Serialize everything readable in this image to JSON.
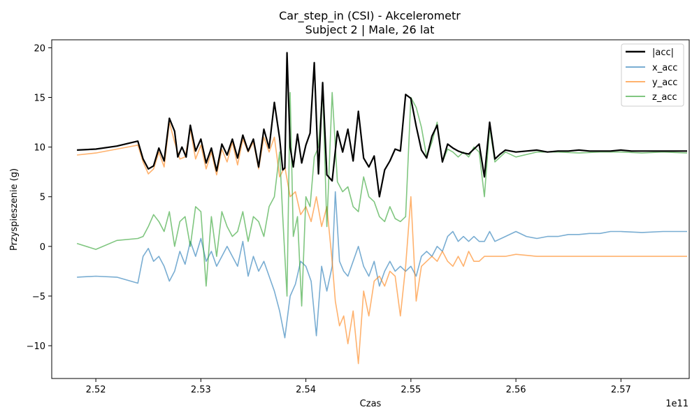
{
  "chart_data": {
    "type": "line",
    "title": "Car_step_in (CSI) - Akcelerometr",
    "subtitle": "Subject 2 | Male, 26 lat",
    "xlabel": "Czas",
    "ylabel": "Przyspieszenie (g)",
    "x_offset_label": "1e11",
    "xlim": [
      2.5158,
      2.5765
    ],
    "ylim": [
      -13.3,
      20.8
    ],
    "xticks": [
      2.52,
      2.53,
      2.54,
      2.55,
      2.56,
      2.57
    ],
    "xtick_labels": [
      "2.52",
      "2.53",
      "2.54",
      "2.55",
      "2.56",
      "2.57"
    ],
    "yticks": [
      -10,
      -5,
      0,
      5,
      10,
      15,
      20
    ],
    "ytick_labels": [
      "−10",
      "−5",
      "0",
      "5",
      "10",
      "15",
      "20"
    ],
    "grid": false,
    "legend_position": "top-right",
    "series": [
      {
        "name": "|acc|",
        "color": "#000000",
        "x": [
          2.5182,
          2.52,
          2.522,
          2.524,
          2.5245,
          2.525,
          2.5255,
          2.526,
          2.5265,
          2.527,
          2.5275,
          2.5278,
          2.5282,
          2.5286,
          2.529,
          2.5295,
          2.53,
          2.5305,
          2.531,
          2.5315,
          2.532,
          2.5325,
          2.533,
          2.5335,
          2.534,
          2.5345,
          2.535,
          2.5355,
          2.536,
          2.5365,
          2.537,
          2.5375,
          2.5378,
          2.538,
          2.5382,
          2.5385,
          2.5388,
          2.5392,
          2.5396,
          2.54,
          2.5404,
          2.5408,
          2.5412,
          2.5416,
          2.542,
          2.5425,
          2.543,
          2.5435,
          2.544,
          2.5445,
          2.545,
          2.5455,
          2.546,
          2.5465,
          2.547,
          2.5475,
          2.548,
          2.5485,
          2.549,
          2.5495,
          2.55,
          2.5505,
          2.551,
          2.5515,
          2.552,
          2.5525,
          2.553,
          2.5535,
          2.554,
          2.5545,
          2.555,
          2.5555,
          2.556,
          2.5565,
          2.557,
          2.5575,
          2.558,
          2.5585,
          2.559,
          2.56,
          2.561,
          2.562,
          2.563,
          2.564,
          2.565,
          2.566,
          2.567,
          2.568,
          2.569,
          2.57,
          2.571,
          2.572,
          2.573,
          2.574,
          2.575,
          2.5763
        ],
        "y": [
          9.7,
          9.8,
          10.1,
          10.6,
          8.8,
          7.8,
          8.1,
          9.9,
          8.6,
          12.9,
          11.6,
          9.0,
          10.0,
          9.0,
          12.2,
          9.6,
          10.8,
          8.4,
          9.9,
          7.6,
          10.3,
          9.2,
          10.8,
          8.9,
          11.2,
          9.6,
          10.8,
          8.0,
          11.8,
          9.9,
          14.5,
          10.9,
          7.7,
          7.9,
          19.5,
          10.0,
          8.0,
          11.3,
          8.4,
          10.2,
          11.4,
          18.5,
          7.3,
          16.5,
          7.2,
          6.6,
          11.6,
          9.5,
          11.8,
          8.6,
          13.6,
          8.9,
          8.0,
          9.1,
          5.0,
          7.7,
          8.6,
          9.8,
          9.6,
          15.3,
          14.9,
          12.1,
          9.7,
          8.9,
          11.1,
          12.2,
          8.5,
          10.3,
          9.9,
          9.6,
          9.4,
          9.3,
          9.8,
          10.3,
          7.0,
          12.5,
          8.8,
          9.3,
          9.7,
          9.5,
          9.6,
          9.7,
          9.5,
          9.6,
          9.6,
          9.7,
          9.6,
          9.6,
          9.6,
          9.7,
          9.6,
          9.6,
          9.6,
          9.6,
          9.6,
          9.6
        ]
      },
      {
        "name": "x_acc",
        "color": "#1f77b4",
        "x": [
          2.5182,
          2.52,
          2.522,
          2.524,
          2.5245,
          2.525,
          2.5255,
          2.526,
          2.5265,
          2.527,
          2.5275,
          2.528,
          2.5285,
          2.529,
          2.5295,
          2.53,
          2.5305,
          2.531,
          2.5315,
          2.532,
          2.5325,
          2.533,
          2.5335,
          2.534,
          2.5345,
          2.535,
          2.5355,
          2.536,
          2.5365,
          2.537,
          2.5375,
          2.538,
          2.5385,
          2.539,
          2.5395,
          2.54,
          2.5405,
          2.541,
          2.5415,
          2.542,
          2.5425,
          2.5428,
          2.5432,
          2.5436,
          2.544,
          2.5445,
          2.545,
          2.5455,
          2.546,
          2.5465,
          2.547,
          2.5475,
          2.548,
          2.5485,
          2.549,
          2.5495,
          2.55,
          2.5505,
          2.551,
          2.5515,
          2.552,
          2.5525,
          2.553,
          2.5535,
          2.554,
          2.5545,
          2.555,
          2.5555,
          2.556,
          2.5565,
          2.557,
          2.5575,
          2.558,
          2.559,
          2.56,
          2.561,
          2.562,
          2.563,
          2.564,
          2.565,
          2.566,
          2.567,
          2.568,
          2.569,
          2.57,
          2.572,
          2.574,
          2.5763
        ],
        "y": [
          -3.1,
          -3.0,
          -3.1,
          -3.7,
          -1.0,
          -0.2,
          -1.5,
          -1.0,
          -2.0,
          -3.5,
          -2.5,
          -0.5,
          -1.8,
          0.5,
          -1.0,
          0.8,
          -1.5,
          -0.5,
          -2.0,
          -1.0,
          0.0,
          -1.0,
          -2.0,
          0.5,
          -3.0,
          -1.0,
          -2.5,
          -1.5,
          -3.0,
          -4.5,
          -6.5,
          -9.2,
          -5.0,
          -3.8,
          -1.5,
          -2.0,
          -3.5,
          -9.0,
          -2.0,
          -4.5,
          -2.0,
          5.5,
          -1.5,
          -2.5,
          -3.0,
          -1.5,
          0.0,
          -2.0,
          -3.0,
          -1.5,
          -4.0,
          -2.5,
          -1.5,
          -2.5,
          -2.0,
          -2.5,
          -2.0,
          -3.0,
          -1.0,
          -0.5,
          -1.0,
          0.0,
          -0.5,
          1.0,
          1.5,
          0.5,
          1.0,
          0.5,
          1.0,
          0.5,
          0.5,
          1.5,
          0.5,
          1.0,
          1.5,
          1.0,
          0.8,
          1.0,
          1.0,
          1.2,
          1.2,
          1.3,
          1.3,
          1.5,
          1.5,
          1.4,
          1.5,
          1.5
        ]
      },
      {
        "name": "y_acc",
        "color": "#ff7f0e",
        "x": [
          2.5182,
          2.52,
          2.522,
          2.524,
          2.5245,
          2.525,
          2.5255,
          2.526,
          2.5265,
          2.527,
          2.5275,
          2.528,
          2.5285,
          2.529,
          2.5295,
          2.53,
          2.5305,
          2.531,
          2.5315,
          2.532,
          2.5325,
          2.533,
          2.5335,
          2.534,
          2.5345,
          2.535,
          2.5355,
          2.536,
          2.5365,
          2.537,
          2.5375,
          2.538,
          2.5385,
          2.539,
          2.5395,
          2.54,
          2.5405,
          2.541,
          2.5415,
          2.542,
          2.5425,
          2.5428,
          2.5432,
          2.5436,
          2.544,
          2.5445,
          2.545,
          2.5455,
          2.546,
          2.5465,
          2.547,
          2.5475,
          2.548,
          2.5485,
          2.549,
          2.5495,
          2.55,
          2.5505,
          2.551,
          2.5515,
          2.552,
          2.5525,
          2.553,
          2.5535,
          2.554,
          2.5545,
          2.555,
          2.5555,
          2.556,
          2.5565,
          2.557,
          2.558,
          2.559,
          2.56,
          2.562,
          2.564,
          2.566,
          2.568,
          2.57,
          2.572,
          2.574,
          2.5763
        ],
        "y": [
          9.2,
          9.4,
          9.8,
          10.2,
          8.5,
          7.3,
          7.8,
          9.5,
          8.0,
          12.5,
          10.5,
          8.8,
          9.0,
          11.8,
          8.8,
          10.2,
          7.8,
          9.5,
          7.2,
          9.8,
          8.5,
          10.5,
          8.2,
          10.8,
          9.5,
          10.5,
          7.8,
          11.0,
          9.5,
          11.0,
          7.0,
          8.0,
          5.0,
          5.5,
          3.2,
          4.0,
          2.5,
          5.0,
          2.0,
          4.0,
          -1.5,
          -5.5,
          -8.0,
          -7.0,
          -9.8,
          -6.5,
          -11.8,
          -4.5,
          -7.0,
          -3.5,
          -3.0,
          -4.0,
          -2.5,
          -3.0,
          -7.0,
          -2.0,
          5.0,
          -5.5,
          -2.0,
          -1.5,
          -1.0,
          -1.5,
          -0.5,
          -1.5,
          -2.0,
          -1.0,
          -2.0,
          -0.5,
          -1.5,
          -1.5,
          -1.0,
          -1.0,
          -1.0,
          -0.8,
          -1.0,
          -1.0,
          -1.0,
          -1.0,
          -1.0,
          -1.0,
          -1.0,
          -1.0
        ]
      },
      {
        "name": "z_acc",
        "color": "#2ca02c",
        "x": [
          2.5182,
          2.52,
          2.522,
          2.524,
          2.5245,
          2.525,
          2.5255,
          2.526,
          2.5265,
          2.527,
          2.5275,
          2.528,
          2.5285,
          2.529,
          2.5295,
          2.53,
          2.5305,
          2.531,
          2.5315,
          2.532,
          2.5325,
          2.533,
          2.5335,
          2.534,
          2.5345,
          2.535,
          2.5355,
          2.536,
          2.5365,
          2.537,
          2.5375,
          2.5378,
          2.5382,
          2.5385,
          2.5388,
          2.5392,
          2.5396,
          2.54,
          2.5404,
          2.5408,
          2.5412,
          2.5416,
          2.542,
          2.5425,
          2.543,
          2.5435,
          2.544,
          2.5445,
          2.545,
          2.5455,
          2.546,
          2.5465,
          2.547,
          2.5475,
          2.548,
          2.5485,
          2.549,
          2.5495,
          2.55,
          2.5505,
          2.551,
          2.5515,
          2.552,
          2.5525,
          2.553,
          2.5535,
          2.554,
          2.5545,
          2.555,
          2.5555,
          2.556,
          2.5565,
          2.557,
          2.5575,
          2.558,
          2.5585,
          2.559,
          2.56,
          2.562,
          2.564,
          2.566,
          2.568,
          2.57,
          2.572,
          2.574,
          2.5763
        ],
        "y": [
          0.3,
          -0.3,
          0.6,
          0.8,
          1.0,
          2.0,
          3.2,
          2.5,
          1.5,
          3.5,
          0.0,
          2.5,
          3.0,
          0.0,
          4.0,
          3.5,
          -4.0,
          3.0,
          -1.0,
          3.5,
          2.0,
          1.0,
          1.5,
          3.5,
          0.5,
          3.0,
          2.5,
          1.0,
          4.0,
          5.0,
          9.5,
          3.0,
          -5.0,
          15.5,
          1.0,
          3.0,
          -6.0,
          5.0,
          4.0,
          9.0,
          10.0,
          16.0,
          2.0,
          15.5,
          6.5,
          5.5,
          6.0,
          4.0,
          3.5,
          7.0,
          5.0,
          4.5,
          3.0,
          2.5,
          4.0,
          2.8,
          2.5,
          3.0,
          15.0,
          14.0,
          12.0,
          9.0,
          10.5,
          12.5,
          8.5,
          9.8,
          9.5,
          9.0,
          9.5,
          9.0,
          10.0,
          9.5,
          5.0,
          12.0,
          8.5,
          9.0,
          9.5,
          9.0,
          9.5,
          9.5,
          9.4,
          9.5,
          9.5,
          9.4,
          9.5,
          9.4
        ]
      }
    ]
  }
}
